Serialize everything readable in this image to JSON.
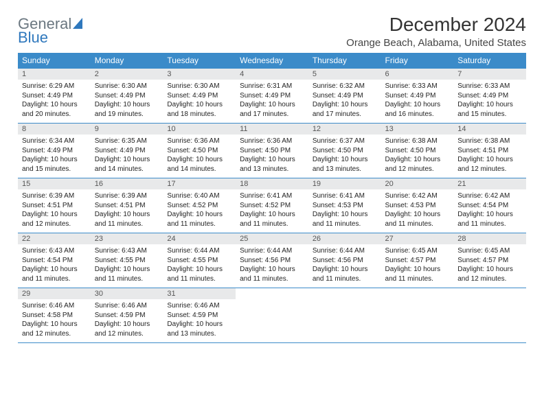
{
  "logo": {
    "text1": "General",
    "text2": "Blue"
  },
  "title": "December 2024",
  "subtitle": "Orange Beach, Alabama, United States",
  "header_color": "#3b8bc9",
  "daynum_bg": "#e8e9ea",
  "border_color": "#3b8bc9",
  "weekdays": [
    "Sunday",
    "Monday",
    "Tuesday",
    "Wednesday",
    "Thursday",
    "Friday",
    "Saturday"
  ],
  "weeks": [
    [
      {
        "n": "1",
        "sunrise": "Sunrise: 6:29 AM",
        "sunset": "Sunset: 4:49 PM",
        "daylight": "Daylight: 10 hours and 20 minutes."
      },
      {
        "n": "2",
        "sunrise": "Sunrise: 6:30 AM",
        "sunset": "Sunset: 4:49 PM",
        "daylight": "Daylight: 10 hours and 19 minutes."
      },
      {
        "n": "3",
        "sunrise": "Sunrise: 6:30 AM",
        "sunset": "Sunset: 4:49 PM",
        "daylight": "Daylight: 10 hours and 18 minutes."
      },
      {
        "n": "4",
        "sunrise": "Sunrise: 6:31 AM",
        "sunset": "Sunset: 4:49 PM",
        "daylight": "Daylight: 10 hours and 17 minutes."
      },
      {
        "n": "5",
        "sunrise": "Sunrise: 6:32 AM",
        "sunset": "Sunset: 4:49 PM",
        "daylight": "Daylight: 10 hours and 17 minutes."
      },
      {
        "n": "6",
        "sunrise": "Sunrise: 6:33 AM",
        "sunset": "Sunset: 4:49 PM",
        "daylight": "Daylight: 10 hours and 16 minutes."
      },
      {
        "n": "7",
        "sunrise": "Sunrise: 6:33 AM",
        "sunset": "Sunset: 4:49 PM",
        "daylight": "Daylight: 10 hours and 15 minutes."
      }
    ],
    [
      {
        "n": "8",
        "sunrise": "Sunrise: 6:34 AM",
        "sunset": "Sunset: 4:49 PM",
        "daylight": "Daylight: 10 hours and 15 minutes."
      },
      {
        "n": "9",
        "sunrise": "Sunrise: 6:35 AM",
        "sunset": "Sunset: 4:49 PM",
        "daylight": "Daylight: 10 hours and 14 minutes."
      },
      {
        "n": "10",
        "sunrise": "Sunrise: 6:36 AM",
        "sunset": "Sunset: 4:50 PM",
        "daylight": "Daylight: 10 hours and 14 minutes."
      },
      {
        "n": "11",
        "sunrise": "Sunrise: 6:36 AM",
        "sunset": "Sunset: 4:50 PM",
        "daylight": "Daylight: 10 hours and 13 minutes."
      },
      {
        "n": "12",
        "sunrise": "Sunrise: 6:37 AM",
        "sunset": "Sunset: 4:50 PM",
        "daylight": "Daylight: 10 hours and 13 minutes."
      },
      {
        "n": "13",
        "sunrise": "Sunrise: 6:38 AM",
        "sunset": "Sunset: 4:50 PM",
        "daylight": "Daylight: 10 hours and 12 minutes."
      },
      {
        "n": "14",
        "sunrise": "Sunrise: 6:38 AM",
        "sunset": "Sunset: 4:51 PM",
        "daylight": "Daylight: 10 hours and 12 minutes."
      }
    ],
    [
      {
        "n": "15",
        "sunrise": "Sunrise: 6:39 AM",
        "sunset": "Sunset: 4:51 PM",
        "daylight": "Daylight: 10 hours and 12 minutes."
      },
      {
        "n": "16",
        "sunrise": "Sunrise: 6:39 AM",
        "sunset": "Sunset: 4:51 PM",
        "daylight": "Daylight: 10 hours and 11 minutes."
      },
      {
        "n": "17",
        "sunrise": "Sunrise: 6:40 AM",
        "sunset": "Sunset: 4:52 PM",
        "daylight": "Daylight: 10 hours and 11 minutes."
      },
      {
        "n": "18",
        "sunrise": "Sunrise: 6:41 AM",
        "sunset": "Sunset: 4:52 PM",
        "daylight": "Daylight: 10 hours and 11 minutes."
      },
      {
        "n": "19",
        "sunrise": "Sunrise: 6:41 AM",
        "sunset": "Sunset: 4:53 PM",
        "daylight": "Daylight: 10 hours and 11 minutes."
      },
      {
        "n": "20",
        "sunrise": "Sunrise: 6:42 AM",
        "sunset": "Sunset: 4:53 PM",
        "daylight": "Daylight: 10 hours and 11 minutes."
      },
      {
        "n": "21",
        "sunrise": "Sunrise: 6:42 AM",
        "sunset": "Sunset: 4:54 PM",
        "daylight": "Daylight: 10 hours and 11 minutes."
      }
    ],
    [
      {
        "n": "22",
        "sunrise": "Sunrise: 6:43 AM",
        "sunset": "Sunset: 4:54 PM",
        "daylight": "Daylight: 10 hours and 11 minutes."
      },
      {
        "n": "23",
        "sunrise": "Sunrise: 6:43 AM",
        "sunset": "Sunset: 4:55 PM",
        "daylight": "Daylight: 10 hours and 11 minutes."
      },
      {
        "n": "24",
        "sunrise": "Sunrise: 6:44 AM",
        "sunset": "Sunset: 4:55 PM",
        "daylight": "Daylight: 10 hours and 11 minutes."
      },
      {
        "n": "25",
        "sunrise": "Sunrise: 6:44 AM",
        "sunset": "Sunset: 4:56 PM",
        "daylight": "Daylight: 10 hours and 11 minutes."
      },
      {
        "n": "26",
        "sunrise": "Sunrise: 6:44 AM",
        "sunset": "Sunset: 4:56 PM",
        "daylight": "Daylight: 10 hours and 11 minutes."
      },
      {
        "n": "27",
        "sunrise": "Sunrise: 6:45 AM",
        "sunset": "Sunset: 4:57 PM",
        "daylight": "Daylight: 10 hours and 11 minutes."
      },
      {
        "n": "28",
        "sunrise": "Sunrise: 6:45 AM",
        "sunset": "Sunset: 4:57 PM",
        "daylight": "Daylight: 10 hours and 12 minutes."
      }
    ],
    [
      {
        "n": "29",
        "sunrise": "Sunrise: 6:46 AM",
        "sunset": "Sunset: 4:58 PM",
        "daylight": "Daylight: 10 hours and 12 minutes."
      },
      {
        "n": "30",
        "sunrise": "Sunrise: 6:46 AM",
        "sunset": "Sunset: 4:59 PM",
        "daylight": "Daylight: 10 hours and 12 minutes."
      },
      {
        "n": "31",
        "sunrise": "Sunrise: 6:46 AM",
        "sunset": "Sunset: 4:59 PM",
        "daylight": "Daylight: 10 hours and 13 minutes."
      },
      null,
      null,
      null,
      null
    ]
  ]
}
